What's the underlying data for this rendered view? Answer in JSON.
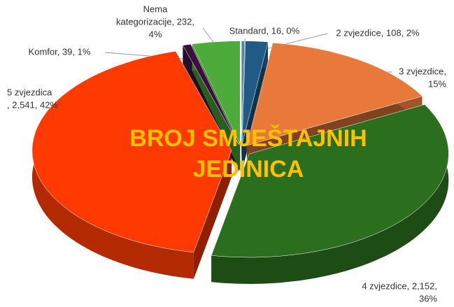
{
  "chart_data": {
    "type": "pie3d",
    "title": [
      "BROJ SMJEŠTAJNIH",
      "JEDINICA"
    ],
    "data_labels": [
      [
        "Standard, 16, 0%"
      ],
      [
        "2 zvjezdice, 108, 2%"
      ],
      [
        "3 zvjezdice,",
        "15%"
      ],
      [
        "4 zvjezdice, 2,152,",
        "36%"
      ],
      [
        "5 zvjezdica",
        ", 2,541, 42%"
      ],
      [
        "Komfor, 39, 1%"
      ],
      [
        "Nema",
        "kategorizacije, 232,",
        "4%"
      ]
    ],
    "values": [
      16,
      108,
      900,
      2152,
      2541,
      39,
      232
    ],
    "colors": [
      "#5b7fa8",
      "#1f5b85",
      "#e8793a",
      "#2a6e1e",
      "#ff3a00",
      "#3a0f3e",
      "#4cab3a"
    ]
  }
}
